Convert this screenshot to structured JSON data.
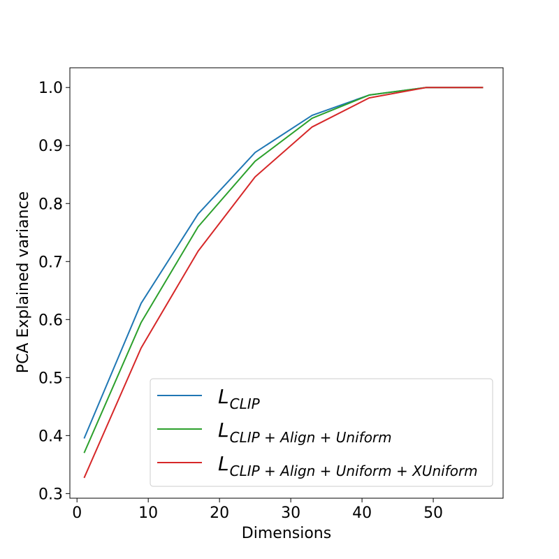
{
  "chart_data": {
    "type": "line",
    "title": "",
    "xlabel": "Dimensions",
    "ylabel": "PCA Explained variance",
    "xlim": [
      -1,
      59.8
    ],
    "ylim": [
      0.292,
      1.034
    ],
    "x_ticks": [
      0,
      10,
      20,
      30,
      40,
      50
    ],
    "y_ticks": [
      0.3,
      0.4,
      0.5,
      0.6,
      0.7,
      0.8,
      0.9,
      1.0
    ],
    "x_tick_labels": [
      "0",
      "10",
      "20",
      "30",
      "40",
      "50"
    ],
    "y_tick_labels": [
      "0.3",
      "0.4",
      "0.5",
      "0.6",
      "0.7",
      "0.8",
      "0.9",
      "1.0"
    ],
    "grid": false,
    "legend_position": "lower-right",
    "x": [
      1,
      9,
      17,
      25,
      33,
      41,
      49,
      57
    ],
    "series": [
      {
        "name_main": "L",
        "name_sub": "CLIP",
        "color": "#1f77b4",
        "values": [
          0.395,
          0.628,
          0.782,
          0.888,
          0.952,
          0.987,
          1.0,
          1.0
        ]
      },
      {
        "name_main": "L",
        "name_sub": "CLIP + Align + Uniform",
        "color": "#2ca02c",
        "values": [
          0.37,
          0.595,
          0.76,
          0.873,
          0.947,
          0.987,
          1.0,
          1.0
        ]
      },
      {
        "name_main": "L",
        "name_sub": "CLIP + Align + Uniform + XUniform",
        "color": "#d62728",
        "values": [
          0.327,
          0.551,
          0.718,
          0.846,
          0.932,
          0.982,
          1.0,
          1.0
        ]
      }
    ]
  }
}
